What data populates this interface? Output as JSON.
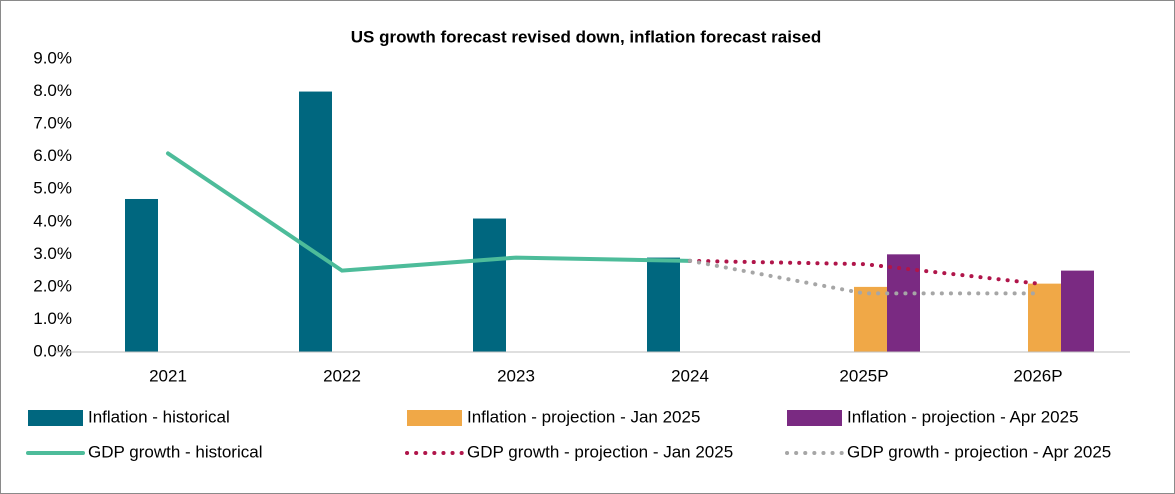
{
  "chart_data": {
    "type": "bar",
    "title": "US growth forecast revised down, inflation forecast raised",
    "categories": [
      "2021",
      "2022",
      "2023",
      "2024",
      "2025P",
      "2026P"
    ],
    "series": [
      {
        "name": "Inflation - historical",
        "type": "bar",
        "color": "#00677f",
        "values": [
          4.7,
          8.0,
          4.1,
          2.9,
          null,
          null
        ]
      },
      {
        "name": "Inflation - projection - Jan 2025",
        "type": "bar",
        "color": "#f0a847",
        "values": [
          null,
          null,
          null,
          null,
          2.0,
          2.1
        ]
      },
      {
        "name": "Inflation - projection - Apr 2025",
        "type": "bar",
        "color": "#7a2a82",
        "values": [
          null,
          null,
          null,
          null,
          3.0,
          2.5
        ]
      },
      {
        "name": "GDP growth - historical",
        "type": "line",
        "color": "#4dbc9a",
        "values": [
          6.1,
          2.5,
          2.9,
          2.8,
          null,
          null
        ]
      },
      {
        "name": "GDP growth - projection - Jan 2025",
        "type": "line",
        "dotted": true,
        "color": "#b0154a",
        "values": [
          null,
          null,
          null,
          2.8,
          2.7,
          2.1
        ]
      },
      {
        "name": "GDP growth - projection - Apr 2025",
        "type": "line",
        "dotted": true,
        "color": "#a6a6a6",
        "values": [
          null,
          null,
          null,
          2.8,
          1.8,
          1.8
        ]
      }
    ],
    "ylim": [
      0,
      9
    ],
    "yticks": [
      {
        "value": 0,
        "label": "0.0%"
      },
      {
        "value": 1,
        "label": "1.0%"
      },
      {
        "value": 2,
        "label": "2.0%"
      },
      {
        "value": 3,
        "label": "3.0%"
      },
      {
        "value": 4,
        "label": "4.0%"
      },
      {
        "value": 5,
        "label": "5.0%"
      },
      {
        "value": 6,
        "label": "6.0%"
      },
      {
        "value": 7,
        "label": "7.0%"
      },
      {
        "value": 8,
        "label": "8.0%"
      },
      {
        "value": 9,
        "label": "9.0%"
      }
    ],
    "grid": false,
    "legend": "bottom"
  }
}
